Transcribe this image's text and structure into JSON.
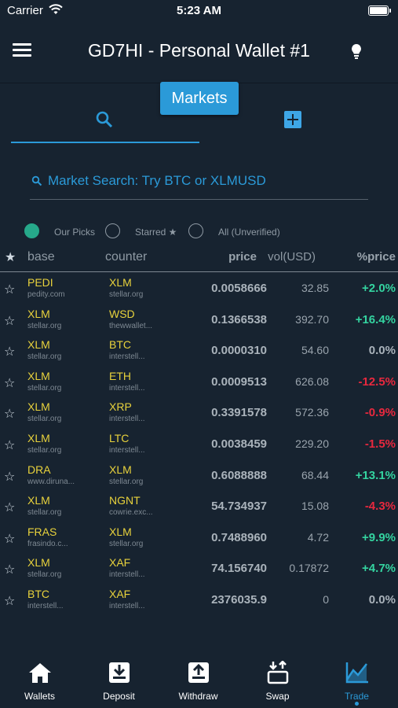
{
  "status_bar": {
    "carrier": "Carrier",
    "time": "5:23 AM"
  },
  "header": {
    "title": "GD7HI - Personal Wallet #1"
  },
  "markets_badge": "Markets",
  "search": {
    "placeholder": "Market Search: Try BTC or XLMUSD"
  },
  "filters": [
    {
      "label": "Our Picks",
      "selected": true
    },
    {
      "label": "Starred ★",
      "selected": false
    },
    {
      "label": "All (Unverified)",
      "selected": false
    }
  ],
  "table": {
    "headers": {
      "star": "★",
      "base": "base",
      "counter": "counter",
      "price": "price",
      "vol": "vol(USD)",
      "pct": "%price"
    },
    "rows": [
      {
        "base": "PEDI",
        "base_domain": "pedity.com",
        "counter": "XLM",
        "counter_domain": "stellar.org",
        "price": "0.0058666",
        "vol": "32.85",
        "pct": "+2.0%",
        "trend": "up"
      },
      {
        "base": "XLM",
        "base_domain": "stellar.org",
        "counter": "WSD",
        "counter_domain": "thewwallet...",
        "price": "0.1366538",
        "vol": "392.70",
        "pct": "+16.4%",
        "trend": "up"
      },
      {
        "base": "XLM",
        "base_domain": "stellar.org",
        "counter": "BTC",
        "counter_domain": "interstell...",
        "price": "0.0000310",
        "vol": "54.60",
        "pct": "0.0%",
        "trend": "flat"
      },
      {
        "base": "XLM",
        "base_domain": "stellar.org",
        "counter": "ETH",
        "counter_domain": "interstell...",
        "price": "0.0009513",
        "vol": "626.08",
        "pct": "-12.5%",
        "trend": "down"
      },
      {
        "base": "XLM",
        "base_domain": "stellar.org",
        "counter": "XRP",
        "counter_domain": "interstell...",
        "price": "0.3391578",
        "vol": "572.36",
        "pct": "-0.9%",
        "trend": "down"
      },
      {
        "base": "XLM",
        "base_domain": "stellar.org",
        "counter": "LTC",
        "counter_domain": "interstell...",
        "price": "0.0038459",
        "vol": "229.20",
        "pct": "-1.5%",
        "trend": "down"
      },
      {
        "base": "DRA",
        "base_domain": "www.diruna...",
        "counter": "XLM",
        "counter_domain": "stellar.org",
        "price": "0.6088888",
        "vol": "68.44",
        "pct": "+13.1%",
        "trend": "up"
      },
      {
        "base": "XLM",
        "base_domain": "stellar.org",
        "counter": "NGNT",
        "counter_domain": "cowrie.exc...",
        "price": "54.734937",
        "vol": "15.08",
        "pct": "-4.3%",
        "trend": "down"
      },
      {
        "base": "FRAS",
        "base_domain": "frasindo.c...",
        "counter": "XLM",
        "counter_domain": "stellar.org",
        "price": "0.7488960",
        "vol": "4.72",
        "pct": "+9.9%",
        "trend": "up"
      },
      {
        "base": "XLM",
        "base_domain": "stellar.org",
        "counter": "XAF",
        "counter_domain": "interstell...",
        "price": "74.156740",
        "vol": "0.17872",
        "pct": "+4.7%",
        "trend": "up"
      },
      {
        "base": "BTC",
        "base_domain": "interstell...",
        "counter": "XAF",
        "counter_domain": "interstell...",
        "price": "2376035.9",
        "vol": "0",
        "pct": "0.0%",
        "trend": "flat"
      }
    ]
  },
  "tabbar": [
    {
      "label": "Wallets",
      "icon": "home-icon",
      "active": false
    },
    {
      "label": "Deposit",
      "icon": "deposit-icon",
      "active": false
    },
    {
      "label": "Withdraw",
      "icon": "withdraw-icon",
      "active": false
    },
    {
      "label": "Swap",
      "icon": "swap-icon",
      "active": false
    },
    {
      "label": "Trade",
      "icon": "trade-chart-icon",
      "active": true
    }
  ],
  "colors": {
    "background": "#172330",
    "accent": "#2b9ad8",
    "asset_code": "#e8d23c",
    "positive": "#34d4a0",
    "negative": "#e8283e",
    "selected_radio": "#26a88a"
  }
}
